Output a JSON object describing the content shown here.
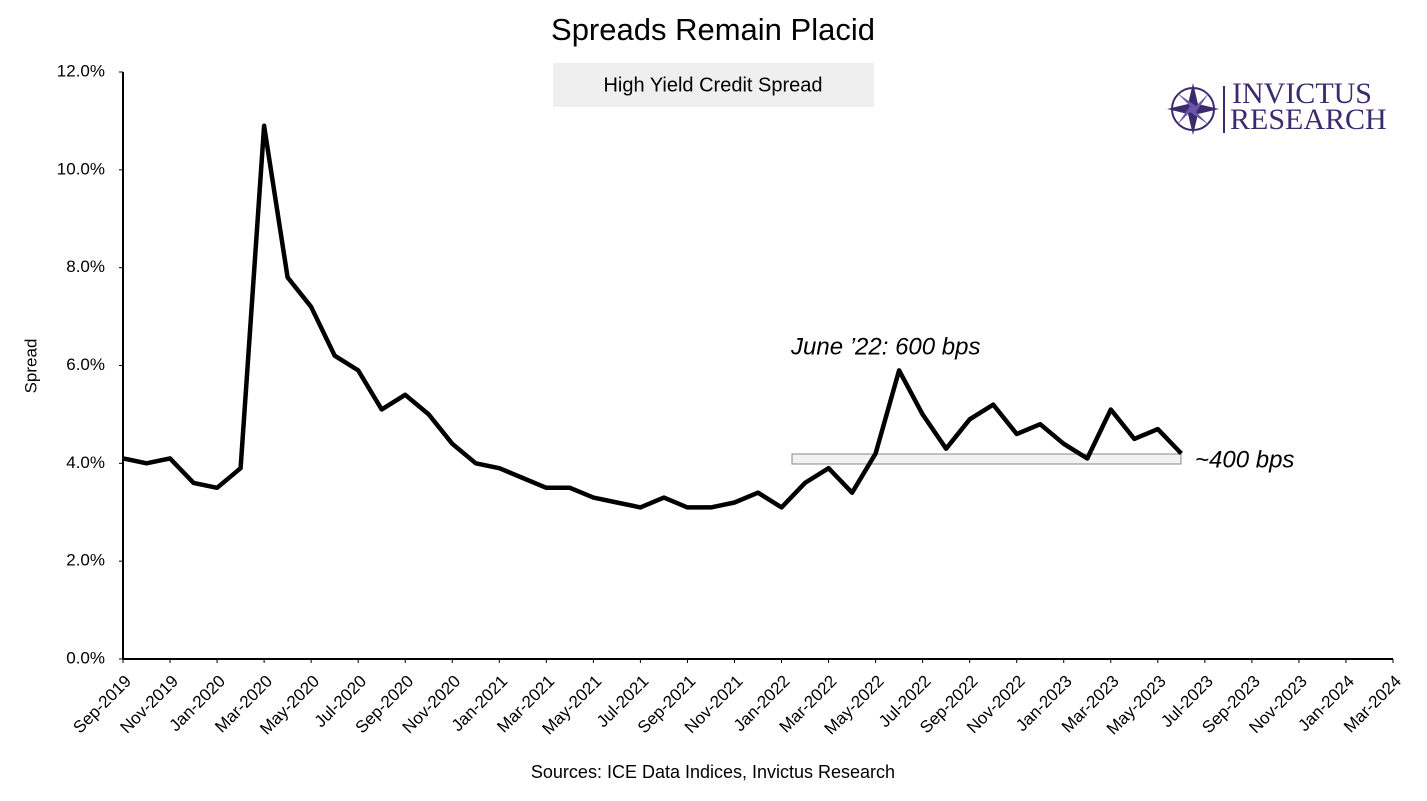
{
  "chart_data": {
    "type": "line",
    "title": "Spreads Remain Placid",
    "y_label": "Spread",
    "source": "Sources: ICE Data Indices, Invictus Research",
    "logo": [
      "INVICTUS",
      "RESEARCH"
    ],
    "annotations": [
      "June ’22: 600 bps",
      "~400 bps"
    ],
    "x": [
      "2019-09",
      "2019-10",
      "2019-11",
      "2019-12",
      "2020-01",
      "2020-02",
      "2020-03",
      "2020-04",
      "2020-05",
      "2020-06",
      "2020-07",
      "2020-08",
      "2020-09",
      "2020-10",
      "2020-11",
      "2020-12",
      "2021-01",
      "2021-02",
      "2021-03",
      "2021-04",
      "2021-05",
      "2021-06",
      "2021-07",
      "2021-08",
      "2021-09",
      "2021-10",
      "2021-11",
      "2021-12",
      "2022-01",
      "2022-02",
      "2022-03",
      "2022-04",
      "2022-05",
      "2022-06",
      "2022-07",
      "2022-08",
      "2022-09",
      "2022-10",
      "2022-11",
      "2022-12",
      "2023-01",
      "2023-02",
      "2023-03",
      "2023-04",
      "2023-05",
      "2023-06"
    ],
    "series": [
      {
        "name": "High Yield Credit Spread",
        "color": "#000000",
        "values": [
          4.1,
          4.0,
          4.1,
          3.6,
          3.5,
          3.9,
          10.9,
          7.8,
          7.2,
          6.2,
          5.9,
          5.1,
          5.4,
          5.0,
          4.4,
          4.0,
          3.9,
          3.7,
          3.5,
          3.5,
          3.3,
          3.2,
          3.1,
          3.3,
          3.1,
          3.1,
          3.2,
          3.4,
          3.1,
          3.6,
          3.9,
          3.4,
          4.2,
          5.9,
          5.0,
          4.3,
          4.9,
          5.2,
          4.6,
          4.8,
          4.4,
          4.1,
          5.1,
          4.5,
          4.7,
          4.2
        ]
      }
    ],
    "xlim": [
      "2019-09",
      "2024-03"
    ],
    "xticks": [
      {
        "value": "2019-09",
        "label": "Sep-2019"
      },
      {
        "value": "2019-11",
        "label": "Nov-2019"
      },
      {
        "value": "2020-01",
        "label": "Jan-2020"
      },
      {
        "value": "2020-03",
        "label": "Mar-2020"
      },
      {
        "value": "2020-05",
        "label": "May-2020"
      },
      {
        "value": "2020-07",
        "label": "Jul-2020"
      },
      {
        "value": "2020-09",
        "label": "Sep-2020"
      },
      {
        "value": "2020-11",
        "label": "Nov-2020"
      },
      {
        "value": "2021-01",
        "label": "Jan-2021"
      },
      {
        "value": "2021-03",
        "label": "Mar-2021"
      },
      {
        "value": "2021-05",
        "label": "May-2021"
      },
      {
        "value": "2021-07",
        "label": "Jul-2021"
      },
      {
        "value": "2021-09",
        "label": "Sep-2021"
      },
      {
        "value": "2021-11",
        "label": "Nov-2021"
      },
      {
        "value": "2022-01",
        "label": "Jan-2022"
      },
      {
        "value": "2022-03",
        "label": "Mar-2022"
      },
      {
        "value": "2022-05",
        "label": "May-2022"
      },
      {
        "value": "2022-07",
        "label": "Jul-2022"
      },
      {
        "value": "2022-09",
        "label": "Sep-2022"
      },
      {
        "value": "2022-11",
        "label": "Nov-2022"
      },
      {
        "value": "2023-01",
        "label": "Jan-2023"
      },
      {
        "value": "2023-03",
        "label": "Mar-2023"
      },
      {
        "value": "2023-05",
        "label": "May-2023"
      },
      {
        "value": "2023-07",
        "label": "Jul-2023"
      },
      {
        "value": "2023-09",
        "label": "Sep-2023"
      },
      {
        "value": "2023-11",
        "label": "Nov-2023"
      },
      {
        "value": "2024-01",
        "label": "Jan-2024"
      },
      {
        "value": "2024-03",
        "label": "Mar-2024"
      }
    ],
    "ylim": [
      0,
      12
    ],
    "yticks": [
      {
        "value": 0,
        "label": "0.0%"
      },
      {
        "value": 2,
        "label": "2.0%"
      },
      {
        "value": 4,
        "label": "4.0%"
      },
      {
        "value": 6,
        "label": "6.0%"
      },
      {
        "value": 8,
        "label": "8.0%"
      },
      {
        "value": 10,
        "label": "10.0%"
      },
      {
        "value": 12,
        "label": "12.0%"
      }
    ],
    "grid": false
  }
}
